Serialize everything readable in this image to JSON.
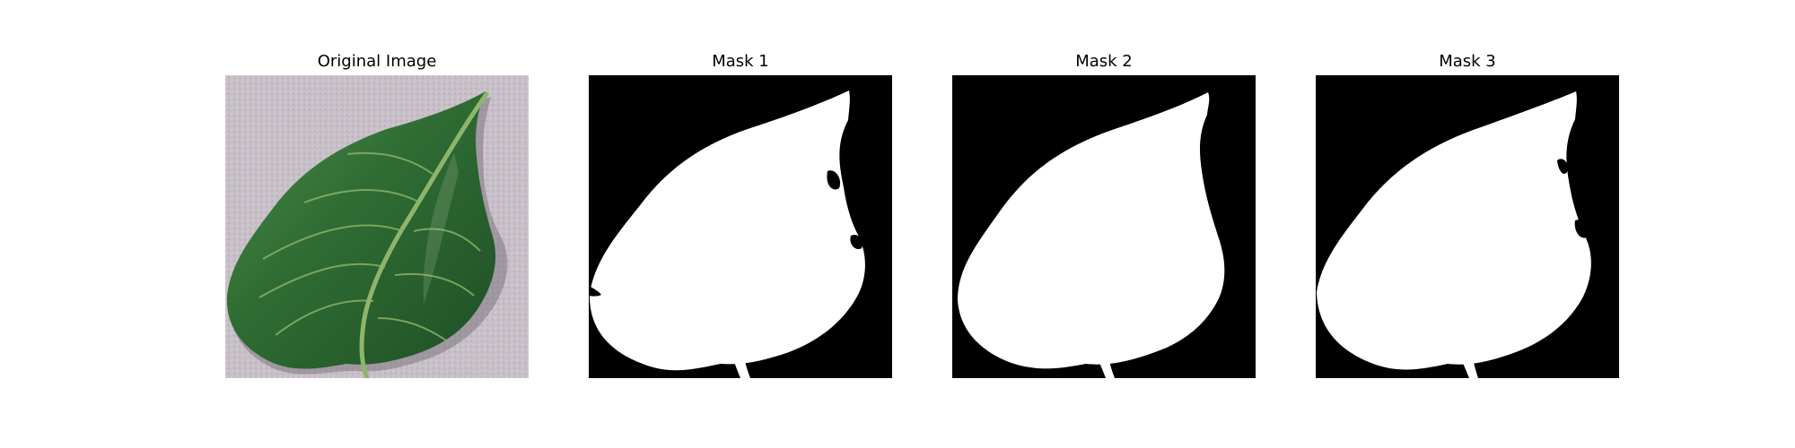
{
  "figure": {
    "panels": [
      {
        "title": "Original Image"
      },
      {
        "title": "Mask 1"
      },
      {
        "title": "Mask 2"
      },
      {
        "title": "Mask 3"
      }
    ]
  },
  "colors": {
    "background": "#c7bfc7",
    "leaf_dark": "#1f4f25",
    "leaf_mid": "#2f6d34",
    "leaf_light": "#4d8c4b",
    "vein": "#8eb56a",
    "shadow": "#6f6770",
    "mask_black": "#000000",
    "mask_white": "#ffffff"
  }
}
